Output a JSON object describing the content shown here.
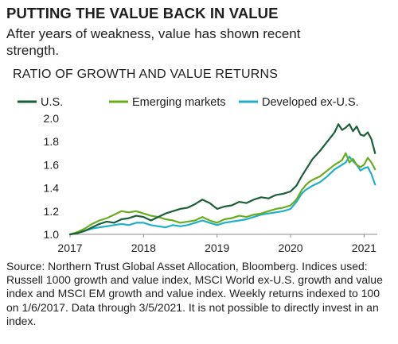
{
  "header": {
    "headline": "PUTTING THE VALUE BACK IN VALUE",
    "subtitle": "After years of weakness, value has shown recent strength."
  },
  "chart_data": {
    "type": "line",
    "title": "RATIO OF GROWTH AND VALUE RETURNS",
    "xlabel": "",
    "ylabel": "",
    "xlim": [
      2017.0,
      2021.18
    ],
    "ylim": [
      1.0,
      2.0
    ],
    "xticks": [
      2017,
      2018,
      2019,
      2020,
      2021
    ],
    "yticks": [
      1.0,
      1.2,
      1.4,
      1.6,
      1.8,
      2.0
    ],
    "ytick_labels": [
      "1.0",
      "1.2",
      "1.4",
      "1.6",
      "1.8",
      "2.0"
    ],
    "xtick_labels": [
      "2017",
      "2018",
      "2019",
      "2020",
      "2021"
    ],
    "grid": false,
    "legend_position": "top",
    "series": [
      {
        "name": "U.S.",
        "color": "#1a5e3a",
        "points": [
          [
            2017.0,
            1.0
          ],
          [
            2017.1,
            1.01
          ],
          [
            2017.2,
            1.03
          ],
          [
            2017.3,
            1.06
          ],
          [
            2017.4,
            1.09
          ],
          [
            2017.5,
            1.11
          ],
          [
            2017.6,
            1.1
          ],
          [
            2017.7,
            1.13
          ],
          [
            2017.8,
            1.14
          ],
          [
            2017.9,
            1.16
          ],
          [
            2018.0,
            1.15
          ],
          [
            2018.1,
            1.12
          ],
          [
            2018.2,
            1.15
          ],
          [
            2018.3,
            1.18
          ],
          [
            2018.4,
            1.2
          ],
          [
            2018.5,
            1.22
          ],
          [
            2018.6,
            1.23
          ],
          [
            2018.7,
            1.26
          ],
          [
            2018.8,
            1.3
          ],
          [
            2018.9,
            1.27
          ],
          [
            2019.0,
            1.22
          ],
          [
            2019.1,
            1.24
          ],
          [
            2019.2,
            1.25
          ],
          [
            2019.3,
            1.28
          ],
          [
            2019.4,
            1.27
          ],
          [
            2019.5,
            1.3
          ],
          [
            2019.6,
            1.32
          ],
          [
            2019.7,
            1.31
          ],
          [
            2019.8,
            1.34
          ],
          [
            2019.9,
            1.35
          ],
          [
            2020.0,
            1.37
          ],
          [
            2020.08,
            1.42
          ],
          [
            2020.15,
            1.5
          ],
          [
            2020.2,
            1.55
          ],
          [
            2020.25,
            1.6
          ],
          [
            2020.3,
            1.65
          ],
          [
            2020.4,
            1.72
          ],
          [
            2020.5,
            1.8
          ],
          [
            2020.6,
            1.88
          ],
          [
            2020.65,
            1.95
          ],
          [
            2020.7,
            1.9
          ],
          [
            2020.75,
            1.92
          ],
          [
            2020.8,
            1.95
          ],
          [
            2020.85,
            1.89
          ],
          [
            2020.9,
            1.93
          ],
          [
            2020.95,
            1.86
          ],
          [
            2021.0,
            1.85
          ],
          [
            2021.05,
            1.88
          ],
          [
            2021.1,
            1.82
          ],
          [
            2021.15,
            1.7
          ]
        ]
      },
      {
        "name": "Emerging markets",
        "color": "#6aac1e",
        "points": [
          [
            2017.0,
            1.0
          ],
          [
            2017.1,
            1.02
          ],
          [
            2017.2,
            1.05
          ],
          [
            2017.3,
            1.09
          ],
          [
            2017.4,
            1.12
          ],
          [
            2017.5,
            1.14
          ],
          [
            2017.6,
            1.17
          ],
          [
            2017.7,
            1.2
          ],
          [
            2017.8,
            1.19
          ],
          [
            2017.9,
            1.2
          ],
          [
            2018.0,
            1.18
          ],
          [
            2018.1,
            1.16
          ],
          [
            2018.2,
            1.15
          ],
          [
            2018.3,
            1.13
          ],
          [
            2018.4,
            1.12
          ],
          [
            2018.5,
            1.1
          ],
          [
            2018.6,
            1.11
          ],
          [
            2018.7,
            1.12
          ],
          [
            2018.8,
            1.15
          ],
          [
            2018.9,
            1.12
          ],
          [
            2019.0,
            1.1
          ],
          [
            2019.1,
            1.13
          ],
          [
            2019.2,
            1.14
          ],
          [
            2019.3,
            1.16
          ],
          [
            2019.4,
            1.15
          ],
          [
            2019.5,
            1.17
          ],
          [
            2019.6,
            1.18
          ],
          [
            2019.7,
            1.2
          ],
          [
            2019.8,
            1.22
          ],
          [
            2019.9,
            1.23
          ],
          [
            2020.0,
            1.25
          ],
          [
            2020.08,
            1.3
          ],
          [
            2020.15,
            1.38
          ],
          [
            2020.2,
            1.42
          ],
          [
            2020.25,
            1.45
          ],
          [
            2020.3,
            1.47
          ],
          [
            2020.4,
            1.5
          ],
          [
            2020.5,
            1.55
          ],
          [
            2020.6,
            1.6
          ],
          [
            2020.7,
            1.64
          ],
          [
            2020.75,
            1.7
          ],
          [
            2020.8,
            1.62
          ],
          [
            2020.85,
            1.65
          ],
          [
            2020.9,
            1.6
          ],
          [
            2020.95,
            1.58
          ],
          [
            2021.0,
            1.6
          ],
          [
            2021.05,
            1.66
          ],
          [
            2021.1,
            1.62
          ],
          [
            2021.15,
            1.56
          ]
        ]
      },
      {
        "name": "Developed ex-U.S.",
        "color": "#1fb0c8",
        "points": [
          [
            2017.0,
            1.0
          ],
          [
            2017.1,
            1.01
          ],
          [
            2017.2,
            1.03
          ],
          [
            2017.3,
            1.05
          ],
          [
            2017.4,
            1.06
          ],
          [
            2017.5,
            1.07
          ],
          [
            2017.6,
            1.08
          ],
          [
            2017.7,
            1.09
          ],
          [
            2017.8,
            1.08
          ],
          [
            2017.9,
            1.1
          ],
          [
            2018.0,
            1.1
          ],
          [
            2018.1,
            1.08
          ],
          [
            2018.2,
            1.07
          ],
          [
            2018.3,
            1.06
          ],
          [
            2018.4,
            1.08
          ],
          [
            2018.5,
            1.07
          ],
          [
            2018.6,
            1.08
          ],
          [
            2018.7,
            1.1
          ],
          [
            2018.8,
            1.12
          ],
          [
            2018.9,
            1.1
          ],
          [
            2019.0,
            1.08
          ],
          [
            2019.1,
            1.1
          ],
          [
            2019.2,
            1.11
          ],
          [
            2019.3,
            1.12
          ],
          [
            2019.4,
            1.13
          ],
          [
            2019.5,
            1.15
          ],
          [
            2019.6,
            1.17
          ],
          [
            2019.7,
            1.18
          ],
          [
            2019.8,
            1.19
          ],
          [
            2019.9,
            1.2
          ],
          [
            2020.0,
            1.22
          ],
          [
            2020.08,
            1.28
          ],
          [
            2020.15,
            1.35
          ],
          [
            2020.2,
            1.38
          ],
          [
            2020.25,
            1.4
          ],
          [
            2020.3,
            1.42
          ],
          [
            2020.4,
            1.45
          ],
          [
            2020.5,
            1.5
          ],
          [
            2020.6,
            1.56
          ],
          [
            2020.7,
            1.6
          ],
          [
            2020.75,
            1.62
          ],
          [
            2020.8,
            1.67
          ],
          [
            2020.85,
            1.63
          ],
          [
            2020.9,
            1.6
          ],
          [
            2020.95,
            1.55
          ],
          [
            2021.0,
            1.57
          ],
          [
            2021.05,
            1.58
          ],
          [
            2021.1,
            1.52
          ],
          [
            2021.15,
            1.43
          ]
        ]
      }
    ]
  },
  "footer": {
    "source": "Source: Northern Trust Global Asset Allocation, Bloomberg. Indices used: Russell 1000 growth and value index, MSCI World ex-U.S. growth and value index and MSCI EM growth and value index. Weekly returns indexed to 100 on 1/6/2017. Data through 3/5/2021. It is not possible to directly invest in an index."
  }
}
